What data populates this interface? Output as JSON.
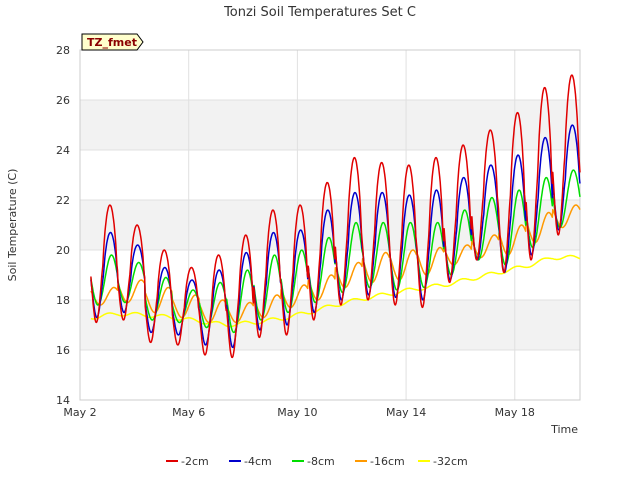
{
  "chart_data": {
    "type": "line",
    "title": "Tonzi Soil Temperatures Set C",
    "xlabel": "Time",
    "ylabel": "Soil Temperature (C)",
    "badge": "TZ_fmet",
    "ylim": [
      14,
      28
    ],
    "yticks": [
      14,
      16,
      18,
      20,
      22,
      24,
      26,
      28
    ],
    "xlim_days": [
      2,
      20.4
    ],
    "xticks": [
      {
        "label": "May 2",
        "day": 2
      },
      {
        "label": "May 6",
        "day": 6
      },
      {
        "label": "May 10",
        "day": 10
      },
      {
        "label": "May 14",
        "day": 14
      },
      {
        "label": "May 18",
        "day": 18
      }
    ],
    "grid": true,
    "legend_position": "bottom",
    "band_color": "#f2f2f2",
    "series": [
      {
        "name": "-2cm",
        "color": "#e00000",
        "daily_min": [
          17.1,
          17.2,
          16.3,
          16.2,
          15.8,
          15.7,
          16.5,
          16.6,
          17.2,
          17.8,
          18.0,
          17.8,
          17.7,
          18.7,
          19.6,
          19.1,
          19.6,
          20.6
        ],
        "daily_max": [
          21.8,
          21.0,
          20.0,
          19.3,
          19.8,
          20.6,
          21.6,
          21.8,
          22.7,
          23.7,
          23.5,
          23.4,
          23.7,
          24.2,
          24.8,
          25.5,
          26.5,
          27.0
        ],
        "end_value": 20.7
      },
      {
        "name": "-4cm",
        "color": "#0000cc",
        "daily_min": [
          17.3,
          17.5,
          16.7,
          16.6,
          16.2,
          16.1,
          16.8,
          17.0,
          17.5,
          18.0,
          18.2,
          18.1,
          18.0,
          18.8,
          19.6,
          19.1,
          19.8,
          20.8
        ],
        "daily_max": [
          20.7,
          20.2,
          19.3,
          18.8,
          19.2,
          19.9,
          20.7,
          20.8,
          21.6,
          22.3,
          22.3,
          22.2,
          22.4,
          22.9,
          23.4,
          23.8,
          24.5,
          25.0
        ],
        "end_value": 21.2
      },
      {
        "name": "-8cm",
        "color": "#00dd00",
        "daily_min": [
          17.8,
          17.9,
          17.2,
          17.1,
          16.9,
          16.7,
          17.2,
          17.5,
          17.9,
          18.3,
          18.5,
          18.4,
          18.5,
          19.0,
          19.6,
          19.4,
          20.1,
          20.9
        ],
        "daily_max": [
          19.8,
          19.5,
          18.9,
          18.4,
          18.7,
          19.2,
          19.8,
          20.0,
          20.5,
          21.1,
          21.1,
          21.1,
          21.1,
          21.6,
          22.1,
          22.4,
          22.9,
          23.2
        ],
        "end_value": 21.5
      },
      {
        "name": "-16cm",
        "color": "#ff9900",
        "daily_min": [
          17.8,
          17.9,
          17.5,
          17.3,
          17.1,
          17.1,
          17.3,
          17.7,
          18.0,
          18.5,
          18.7,
          18.8,
          19.0,
          19.4,
          19.7,
          19.8,
          20.3,
          20.9
        ],
        "daily_max": [
          18.5,
          18.8,
          18.5,
          18.2,
          18.0,
          17.9,
          18.2,
          18.6,
          19.0,
          19.5,
          19.9,
          20.0,
          20.1,
          20.2,
          20.6,
          21.0,
          21.5,
          21.8
        ],
        "end_value": 21.7
      },
      {
        "name": "-32cm",
        "color": "#ffff00",
        "daily_mean": [
          17.3,
          17.45,
          17.4,
          17.3,
          17.15,
          17.0,
          17.1,
          17.25,
          17.5,
          17.8,
          18.05,
          18.25,
          18.45,
          18.6,
          18.85,
          19.1,
          19.35,
          19.7
        ],
        "end_value": 19.9
      }
    ]
  }
}
